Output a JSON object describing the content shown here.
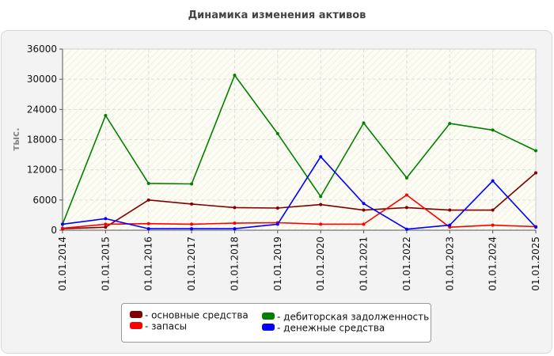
{
  "chart_data": {
    "type": "line",
    "title": "Динамика изменения активов",
    "ylabel": "тыс.",
    "xlabel": "",
    "categories": [
      "01.01.2014",
      "01.01.2015",
      "01.01.2016",
      "01.01.2017",
      "01.01.2018",
      "01.01.2019",
      "01.01.2020",
      "01.01.2021",
      "01.01.2022",
      "01.01.2023",
      "01.01.2024",
      "01.01.2025"
    ],
    "ylim": [
      0,
      36000
    ],
    "yticks": [
      "0",
      "6000",
      "12000",
      "18000",
      "24000",
      "30000",
      "36000"
    ],
    "grid": true,
    "legend_position": "bottom",
    "series": [
      {
        "name": "- основные средства",
        "color": "#800000",
        "values": [
          300,
          600,
          6000,
          5200,
          4500,
          4400,
          5100,
          4000,
          4500,
          4000,
          4000,
          11400
        ]
      },
      {
        "name": "- запасы",
        "color": "#ff0000",
        "values": [
          400,
          1200,
          1300,
          1200,
          1400,
          1500,
          1200,
          1200,
          7000,
          600,
          1000,
          700
        ]
      },
      {
        "name": "- дебиторская задолженность",
        "color": "#008000",
        "values": [
          1200,
          22800,
          9300,
          9200,
          30800,
          19200,
          6700,
          21300,
          10400,
          21200,
          19900,
          15800
        ]
      },
      {
        "name": "- денежные средства",
        "color": "#0000ff",
        "values": [
          1200,
          2300,
          300,
          300,
          300,
          1200,
          14600,
          5300,
          200,
          1000,
          9800,
          600
        ]
      }
    ]
  }
}
